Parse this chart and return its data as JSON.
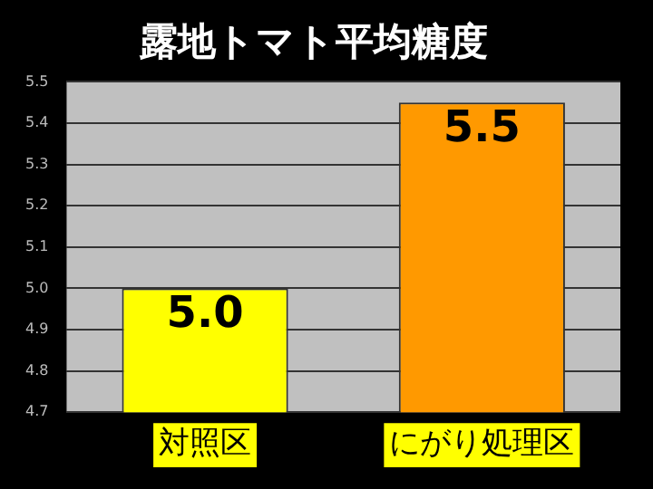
{
  "chart_data": {
    "type": "bar",
    "title": "露地トマト平均糖度",
    "categories": [
      "対照区",
      "にがり処理区"
    ],
    "values": [
      5.0,
      5.45
    ],
    "colors": [
      "#ffff00",
      "#ff9900"
    ],
    "value_labels": [
      "5.0",
      "5.5"
    ],
    "ylim": [
      4.7,
      5.5
    ],
    "yticks": [
      {
        "value": 4.7,
        "label": "4.7"
      },
      {
        "value": 4.8,
        "label": "4.8"
      },
      {
        "value": 4.9,
        "label": "4.9"
      },
      {
        "value": 5.0,
        "label": "5.0"
      },
      {
        "value": 5.1,
        "label": "5.1"
      },
      {
        "value": 5.2,
        "label": "5.2"
      },
      {
        "value": 5.3,
        "label": "5.3"
      },
      {
        "value": 5.4,
        "label": "5.4"
      },
      {
        "value": 5.5,
        "label": "5.5"
      }
    ],
    "grid": "y"
  }
}
